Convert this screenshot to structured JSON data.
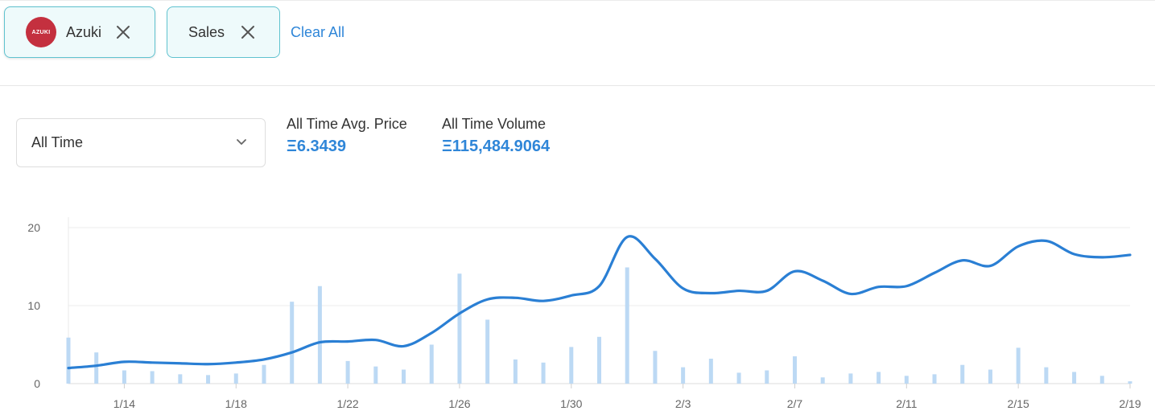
{
  "filters": {
    "collection": {
      "name": "Azuki",
      "logo_text": "AZUKI",
      "logo_color": "#c4303f"
    },
    "type": {
      "label": "Sales"
    },
    "clear_label": "Clear All"
  },
  "period_select": {
    "value": "All Time"
  },
  "stats": {
    "avg_price": {
      "label": "All Time Avg. Price",
      "value": "Ξ6.3439"
    },
    "volume": {
      "label": "All Time Volume",
      "value": "Ξ115,484.9064"
    }
  },
  "colors": {
    "accent": "#2f86d8",
    "line": "#2a7fd4",
    "bar": "#bcd9f4",
    "chip_border": "#5fc2cf"
  },
  "chart_data": {
    "type": "line",
    "x_start": "1/12",
    "x_end": "2/19",
    "x_tick_labels": [
      "1/14",
      "1/18",
      "1/22",
      "1/26",
      "1/30",
      "2/3",
      "2/7",
      "2/11",
      "2/15",
      "2/19"
    ],
    "y_tick_labels": [
      "0",
      "10",
      "20"
    ],
    "ylim": [
      0,
      20
    ],
    "grid": true,
    "series": [
      {
        "type": "bar",
        "values": [
          5.9,
          4.0,
          1.7,
          1.6,
          1.2,
          1.1,
          1.3,
          2.4,
          10.5,
          12.5,
          2.9,
          2.2,
          1.8,
          5.0,
          14.1,
          8.2,
          3.1,
          2.7,
          4.7,
          6.0,
          14.9,
          4.2,
          2.1,
          3.2,
          1.4,
          1.7,
          3.5,
          0.8,
          1.3,
          1.5,
          1.0,
          1.2,
          2.4,
          1.8,
          4.6,
          2.1,
          1.5,
          1.0,
          0.3
        ]
      },
      {
        "type": "line",
        "values": [
          2.0,
          2.3,
          2.8,
          2.7,
          2.6,
          2.5,
          2.7,
          3.1,
          4.0,
          5.3,
          5.4,
          5.6,
          4.8,
          6.5,
          9.0,
          10.8,
          11.0,
          10.6,
          11.3,
          12.5,
          18.8,
          16.0,
          12.2,
          11.6,
          11.9,
          11.9,
          14.4,
          13.2,
          11.5,
          12.4,
          12.5,
          14.2,
          15.8,
          15.1,
          17.6,
          18.3,
          16.6,
          16.2,
          16.5
        ]
      }
    ]
  }
}
